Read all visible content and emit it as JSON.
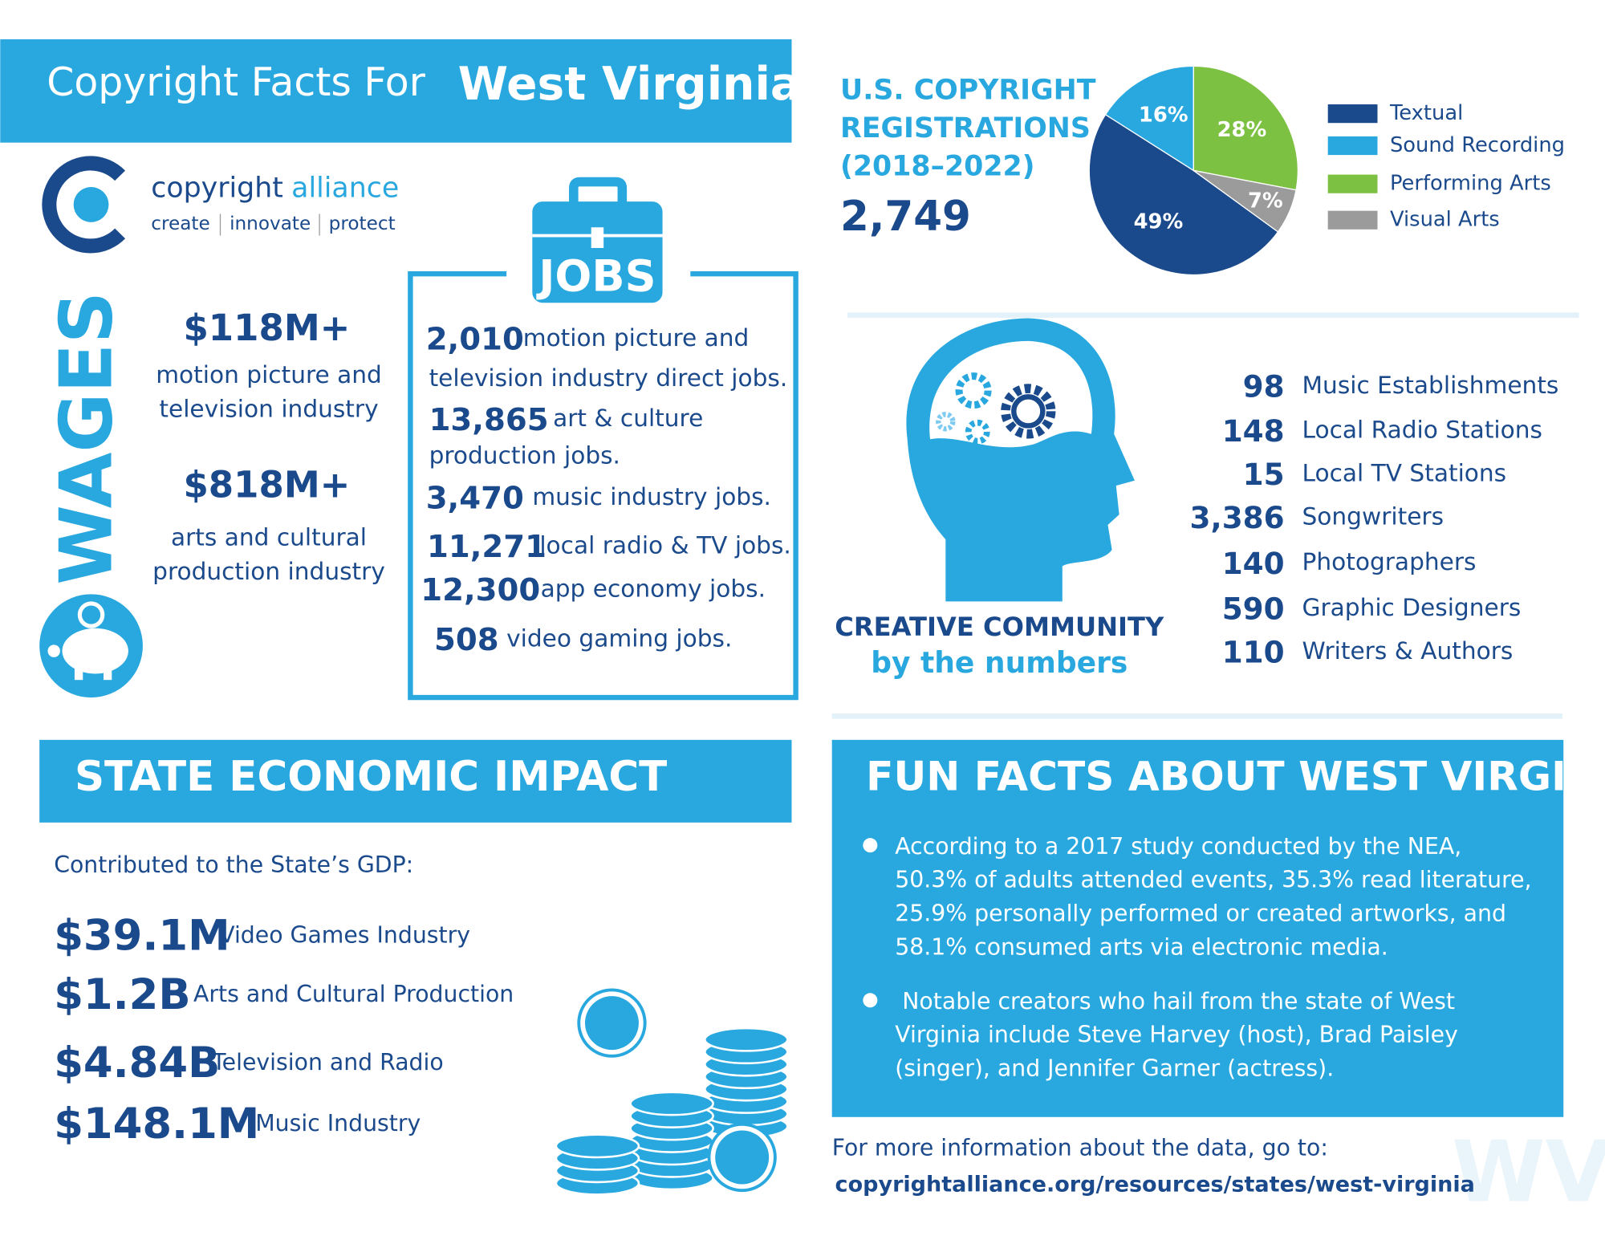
{
  "header": {
    "title_prefix": "Copyright Facts For",
    "state": "West Virginia"
  },
  "logo": {
    "name_first": "copyright",
    "name_second": "alliance",
    "tagline": [
      "create",
      "innovate",
      "protect"
    ]
  },
  "wages": {
    "title": "WAGES",
    "items": [
      {
        "value": "$118M+",
        "lines": [
          "motion picture and",
          "television industry"
        ]
      },
      {
        "value": "$818M+",
        "lines": [
          "arts and cultural",
          "production industry"
        ]
      }
    ]
  },
  "jobs": {
    "title": "JOBS",
    "items": [
      {
        "value": "2,010",
        "lines": [
          "motion picture and",
          "television industry direct jobs."
        ]
      },
      {
        "value": "13,865",
        "lines": [
          "art & culture",
          "production jobs."
        ]
      },
      {
        "value": "3,470",
        "lines": [
          "music industry jobs."
        ]
      },
      {
        "value": "11,271",
        "lines": [
          "local radio & TV jobs."
        ]
      },
      {
        "value": "12,300",
        "lines": [
          "app economy jobs."
        ]
      },
      {
        "value": "508",
        "lines": [
          "video gaming jobs."
        ]
      }
    ]
  },
  "registrations": {
    "title_lines": [
      "U.S. COPYRIGHT",
      "REGISTRATIONS",
      "(2018–2022)"
    ],
    "total": "2,749"
  },
  "chart_data": {
    "type": "pie",
    "categories": [
      "Textual",
      "Sound Recording",
      "Performing Arts",
      "Visual Arts"
    ],
    "values": [
      49,
      16,
      28,
      7
    ],
    "value_labels": [
      "49%",
      "16%",
      "28%",
      "7%"
    ],
    "colors": [
      "#1b4a8c",
      "#29a8e0",
      "#7dc142",
      "#9b9b9b"
    ],
    "legend": "right"
  },
  "creative": {
    "title": "CREATIVE COMMUNITY",
    "subtitle": "by the numbers",
    "items": [
      {
        "value": "98",
        "label": "Music Establishments"
      },
      {
        "value": "148",
        "label": "Local Radio Stations"
      },
      {
        "value": "15",
        "label": "Local TV Stations"
      },
      {
        "value": "3,386",
        "label": "Songwriters"
      },
      {
        "value": "140",
        "label": "Photographers"
      },
      {
        "value": "590",
        "label": "Graphic Designers"
      },
      {
        "value": "110",
        "label": "Writers & Authors"
      }
    ]
  },
  "economic": {
    "title": "STATE ECONOMIC IMPACT",
    "intro": "Contributed to the State’s GDP:",
    "items": [
      {
        "value": "$39.1M",
        "label": "Video Games Industry"
      },
      {
        "value": "$1.2B",
        "label": "Arts and Cultural Production"
      },
      {
        "value": "$4.84B",
        "label": "Television and Radio"
      },
      {
        "value": "$148.1M",
        "label": "Music Industry"
      }
    ]
  },
  "fun_facts": {
    "title": "FUN FACTS ABOUT WEST VIRGINIA",
    "facts": [
      [
        "According to a 2017 study conducted by the NEA,",
        "50.3% of adults attended events, 35.3% read literature,",
        "25.9% personally performed or created artworks, and",
        "58.1% consumed arts via electronic media."
      ],
      [
        "Notable creators who hail from the state of West",
        "Virginia include Steve Harvey (host), Brad Paisley",
        "(singer), and Jennifer Garner (actress)."
      ]
    ]
  },
  "footer": {
    "prompt": "For more information about the data, go to:",
    "url": "copyrightalliance.org/resources/states/west-virginia",
    "watermark": "WV"
  }
}
